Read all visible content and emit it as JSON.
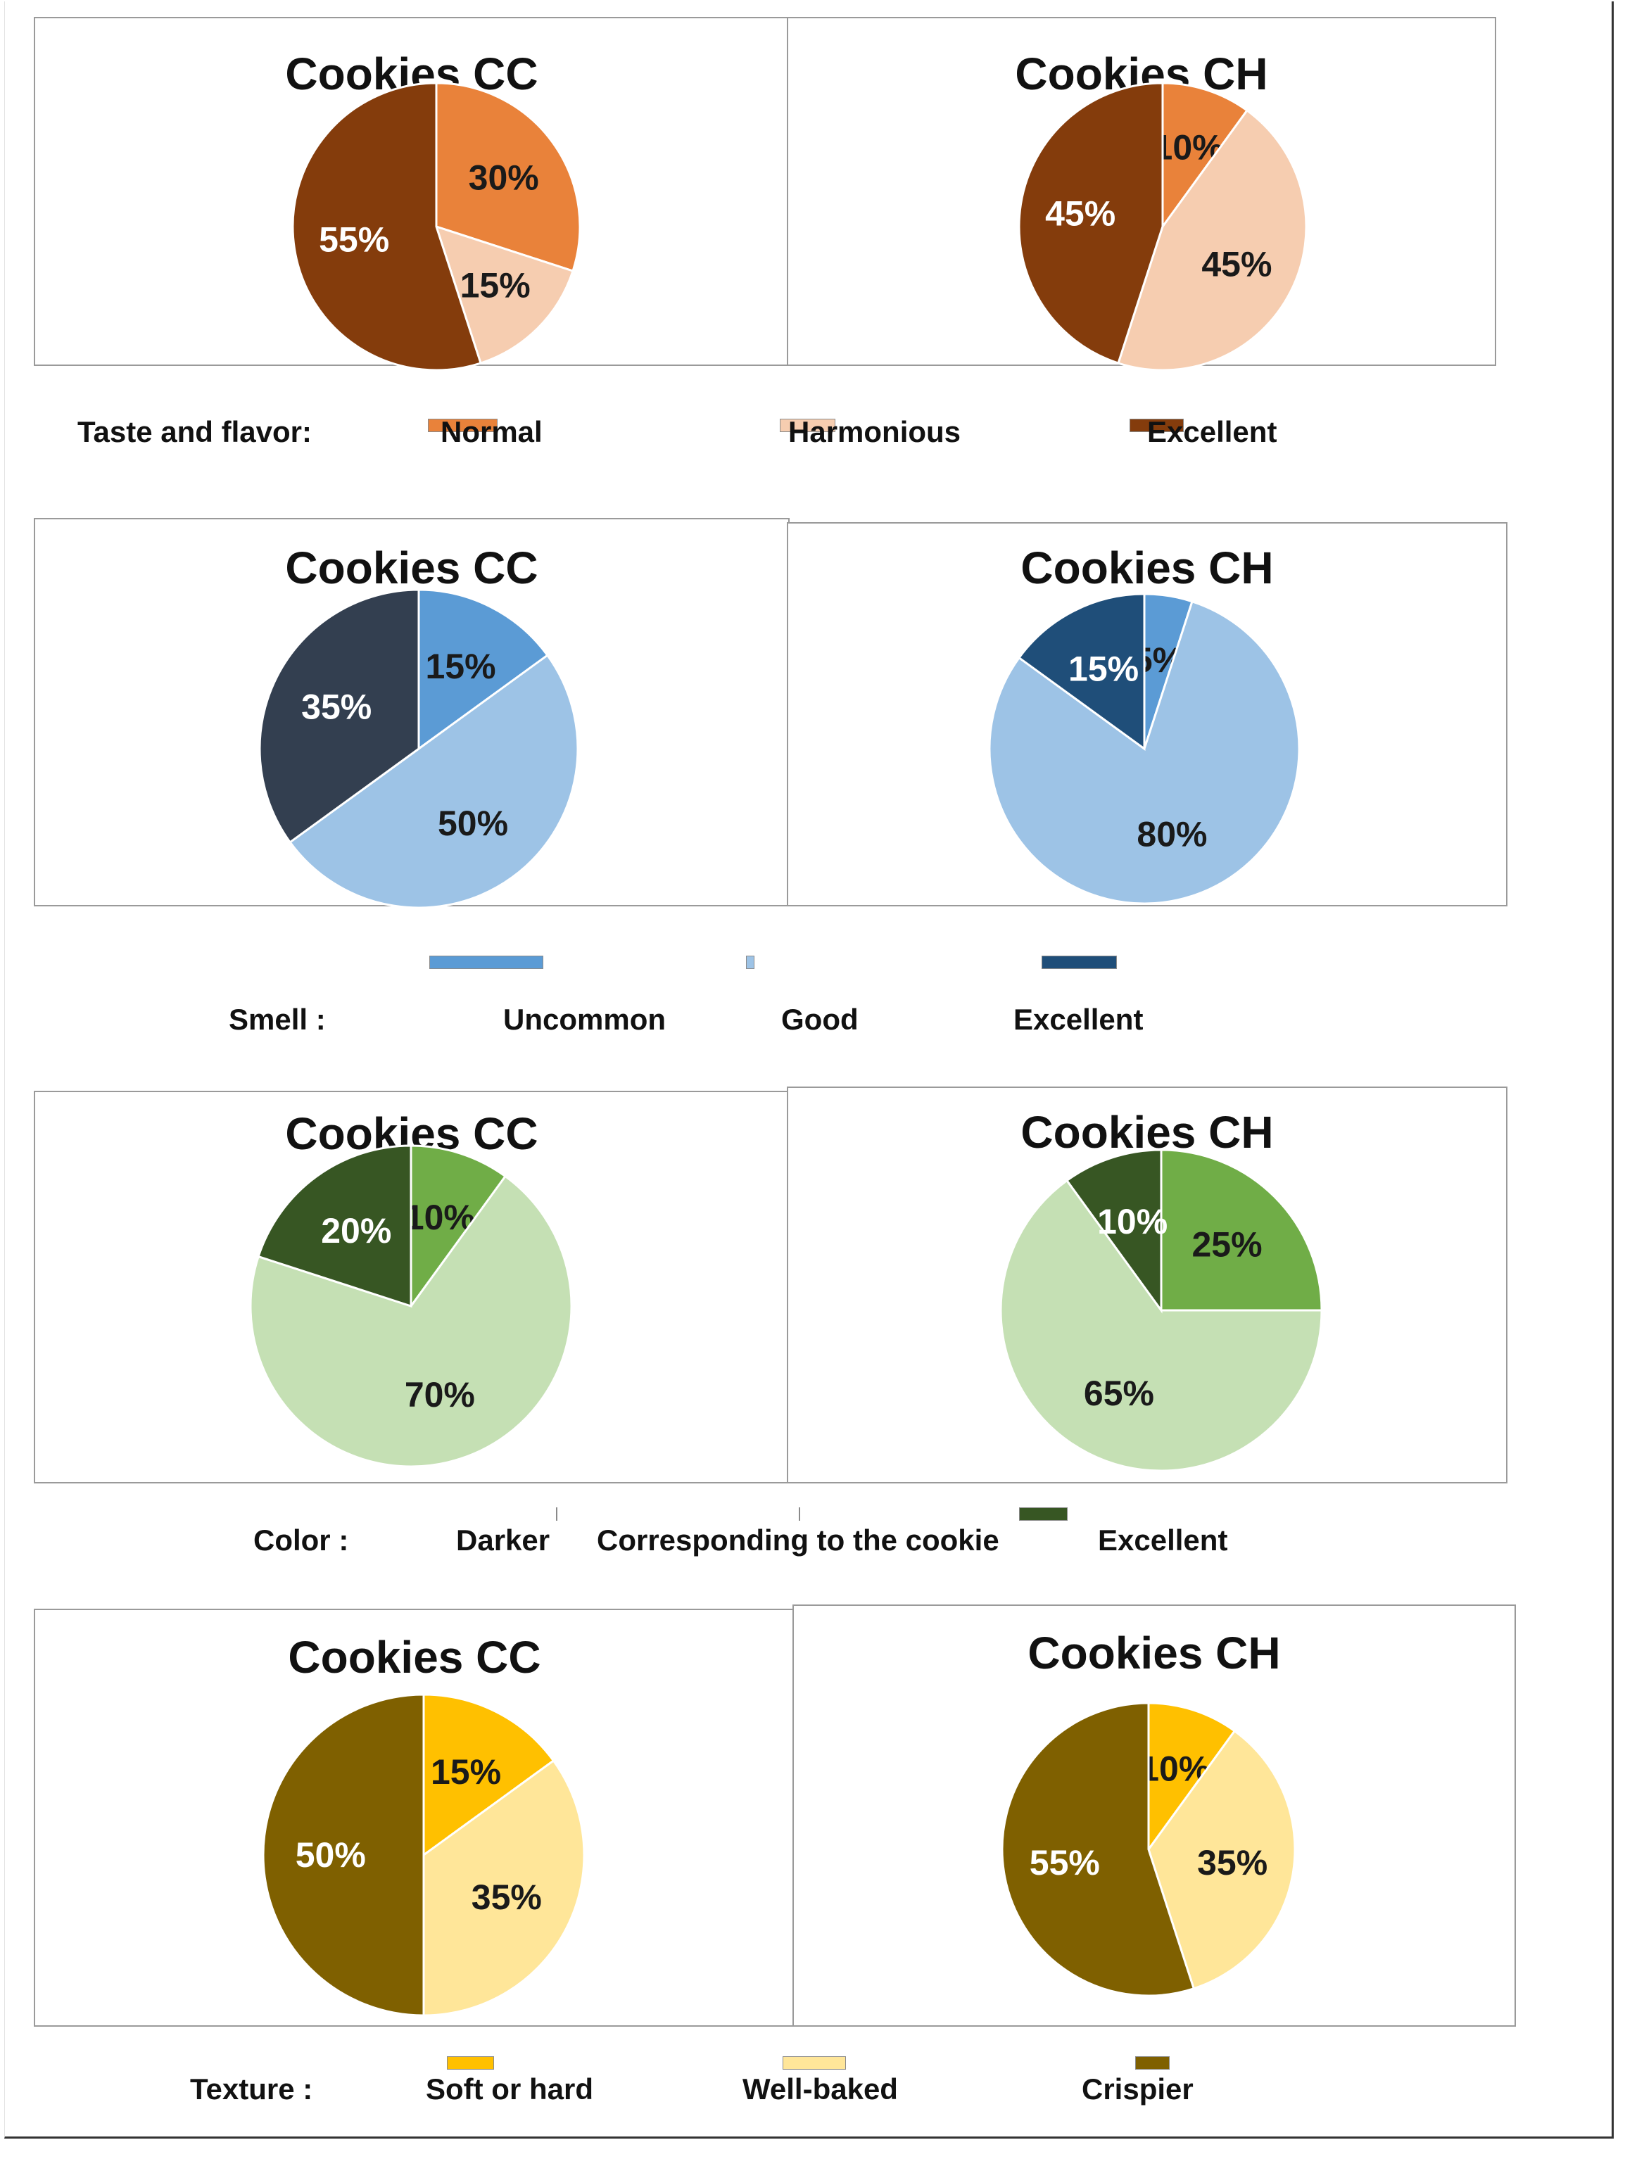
{
  "chart_data": [
    {
      "type": "pie",
      "group": "taste",
      "title": "Cookies CC",
      "categories": [
        "Normal",
        "Harmonious",
        "Excellent"
      ],
      "values": [
        30,
        15,
        55
      ],
      "labels": [
        "30%",
        "15%",
        "55%"
      ],
      "colors": [
        "#E9823A",
        "#F6CDB0",
        "#843C0C"
      ],
      "label_colors": [
        "#1a1a1a",
        "#1a1a1a",
        "#ffffff"
      ]
    },
    {
      "type": "pie",
      "group": "taste",
      "title": "Cookies CH",
      "categories": [
        "Normal",
        "Harmonious",
        "Excellent"
      ],
      "values": [
        10,
        45,
        45
      ],
      "labels": [
        "10%",
        "45%",
        "45%"
      ],
      "colors": [
        "#E9823A",
        "#F6CDB0",
        "#843C0C"
      ],
      "label_colors": [
        "#1a1a1a",
        "#1a1a1a",
        "#ffffff"
      ]
    },
    {
      "type": "pie",
      "group": "smell",
      "title": "Cookies CC",
      "categories": [
        "Uncommon",
        "Good",
        "Excellent"
      ],
      "values": [
        15,
        50,
        35
      ],
      "labels": [
        "15%",
        "50%",
        "35%"
      ],
      "colors": [
        "#5B9BD5",
        "#9DC3E6",
        "#333F50"
      ],
      "label_colors": [
        "#1a1a1a",
        "#1a1a1a",
        "#ffffff"
      ]
    },
    {
      "type": "pie",
      "group": "smell",
      "title": "Cookies CH",
      "categories": [
        "Uncommon",
        "Good",
        "Excellent"
      ],
      "values": [
        5,
        80,
        15
      ],
      "labels": [
        "5%",
        "80%",
        "15%"
      ],
      "colors": [
        "#5B9BD5",
        "#9DC3E6",
        "#1F4E79"
      ],
      "label_colors": [
        "#1a1a1a",
        "#1a1a1a",
        "#ffffff"
      ]
    },
    {
      "type": "pie",
      "group": "color",
      "title": "Cookies CC",
      "categories": [
        "Darker",
        "Corresponding to the cookie",
        "Excellent"
      ],
      "values": [
        10,
        70,
        20
      ],
      "labels": [
        "10%",
        "70%",
        "20%"
      ],
      "colors": [
        "#70AD47",
        "#C5E0B4",
        "#375623"
      ],
      "label_colors": [
        "#1a1a1a",
        "#1a1a1a",
        "#ffffff"
      ]
    },
    {
      "type": "pie",
      "group": "color",
      "title": "Cookies CH",
      "categories": [
        "Darker",
        "Corresponding to the cookie",
        "Excellent"
      ],
      "values": [
        25,
        65,
        10
      ],
      "labels": [
        "25%",
        "65%",
        "10%"
      ],
      "colors": [
        "#70AD47",
        "#C5E0B4",
        "#375623"
      ],
      "label_colors": [
        "#1a1a1a",
        "#1a1a1a",
        "#ffffff"
      ]
    },
    {
      "type": "pie",
      "group": "texture",
      "title": "Cookies CC",
      "categories": [
        "Soft or hard",
        "Well-baked",
        "Crispier"
      ],
      "values": [
        15,
        35,
        50
      ],
      "labels": [
        "15%",
        "35%",
        "50%"
      ],
      "colors": [
        "#FFC000",
        "#FFE699",
        "#7F6000"
      ],
      "label_colors": [
        "#1a1a1a",
        "#1a1a1a",
        "#ffffff"
      ]
    },
    {
      "type": "pie",
      "group": "texture",
      "title": "Cookies CH",
      "categories": [
        "Soft or hard",
        "Well-baked",
        "Crispier"
      ],
      "values": [
        10,
        35,
        55
      ],
      "labels": [
        "10%",
        "35%",
        "55%"
      ],
      "colors": [
        "#FFC000",
        "#FFE699",
        "#7F6000"
      ],
      "label_colors": [
        "#1a1a1a",
        "#1a1a1a",
        "#ffffff"
      ]
    }
  ],
  "legends": [
    {
      "group": "taste",
      "label": "Taste and flavor:",
      "items": [
        {
          "text": "Normal",
          "color": "#E9823A"
        },
        {
          "text": "Harmonious",
          "color": "#F6CDB0"
        },
        {
          "text": "Excellent",
          "color": "#843C0C"
        }
      ]
    },
    {
      "group": "smell",
      "label": "Smell :",
      "items": [
        {
          "text": "Uncommon",
          "color": "#5B9BD5"
        },
        {
          "text": "Good",
          "color": "#9DC3E6"
        },
        {
          "text": "Excellent",
          "color": "#1F4E79"
        }
      ]
    },
    {
      "group": "color",
      "label": "Color :",
      "items": [
        {
          "text": "Darker",
          "color": "#70AD47"
        },
        {
          "text": "Corresponding to the cookie",
          "color": "#C5E0B4"
        },
        {
          "text": "Excellent",
          "color": "#375623"
        }
      ]
    },
    {
      "group": "texture",
      "label": "Texture :",
      "items": [
        {
          "text": "Soft or hard",
          "color": "#FFC000"
        },
        {
          "text": "Well-baked",
          "color": "#FFE699"
        },
        {
          "text": "Crispier",
          "color": "#7F6000"
        }
      ]
    }
  ]
}
